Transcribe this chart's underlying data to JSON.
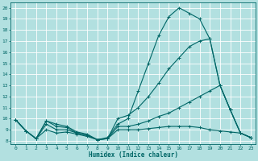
{
  "title": "",
  "xlabel": "Humidex (Indice chaleur)",
  "ylabel": "",
  "bg_color": "#b2e0e0",
  "line_color": "#006666",
  "grid_color": "#ffffff",
  "xlim": [
    -0.5,
    23.5
  ],
  "ylim": [
    7.7,
    20.5
  ],
  "xticks": [
    0,
    1,
    2,
    3,
    4,
    5,
    6,
    7,
    8,
    9,
    10,
    11,
    12,
    13,
    14,
    15,
    16,
    17,
    18,
    19,
    20,
    21,
    22,
    23
  ],
  "yticks": [
    8,
    9,
    10,
    11,
    12,
    13,
    14,
    15,
    16,
    17,
    18,
    19,
    20
  ],
  "curves": [
    {
      "x": [
        0,
        1,
        2,
        3,
        4,
        5,
        6,
        7,
        8,
        9,
        10,
        11,
        12,
        13,
        14,
        15,
        16,
        17,
        18,
        19,
        20,
        21,
        22,
        23
      ],
      "y": [
        9.9,
        8.9,
        8.2,
        9.8,
        9.5,
        9.3,
        8.8,
        8.6,
        8.1,
        8.3,
        9.5,
        10.0,
        12.5,
        15.0,
        17.5,
        19.2,
        20.0,
        19.5,
        19.0,
        17.2,
        13.0,
        10.8,
        8.7,
        8.3
      ]
    },
    {
      "x": [
        0,
        1,
        2,
        3,
        4,
        5,
        6,
        7,
        8,
        9,
        10,
        11,
        12,
        13,
        14,
        15,
        16,
        17,
        18,
        19,
        20,
        21,
        22,
        23
      ],
      "y": [
        9.9,
        8.9,
        8.2,
        9.8,
        9.3,
        9.2,
        8.7,
        8.5,
        8.1,
        8.2,
        10.0,
        10.3,
        11.0,
        12.0,
        13.2,
        14.5,
        15.5,
        16.5,
        17.0,
        17.2,
        13.0,
        10.8,
        8.7,
        8.3
      ]
    },
    {
      "x": [
        0,
        1,
        2,
        3,
        4,
        5,
        6,
        7,
        8,
        9,
        10,
        11,
        12,
        13,
        14,
        15,
        16,
        17,
        18,
        19,
        20,
        21,
        22,
        23
      ],
      "y": [
        9.9,
        8.9,
        8.2,
        9.5,
        9.0,
        9.0,
        8.7,
        8.5,
        8.1,
        8.2,
        9.3,
        9.3,
        9.5,
        9.8,
        10.2,
        10.5,
        11.0,
        11.5,
        12.0,
        12.5,
        13.0,
        10.8,
        8.7,
        8.3
      ]
    },
    {
      "x": [
        0,
        1,
        2,
        3,
        4,
        5,
        6,
        7,
        8,
        9,
        10,
        11,
        12,
        13,
        14,
        15,
        16,
        17,
        18,
        19,
        20,
        21,
        22,
        23
      ],
      "y": [
        9.9,
        8.9,
        8.2,
        9.0,
        8.7,
        8.8,
        8.6,
        8.4,
        8.1,
        8.2,
        9.0,
        9.0,
        9.0,
        9.1,
        9.2,
        9.3,
        9.3,
        9.3,
        9.2,
        9.0,
        8.9,
        8.8,
        8.7,
        8.3
      ]
    }
  ]
}
